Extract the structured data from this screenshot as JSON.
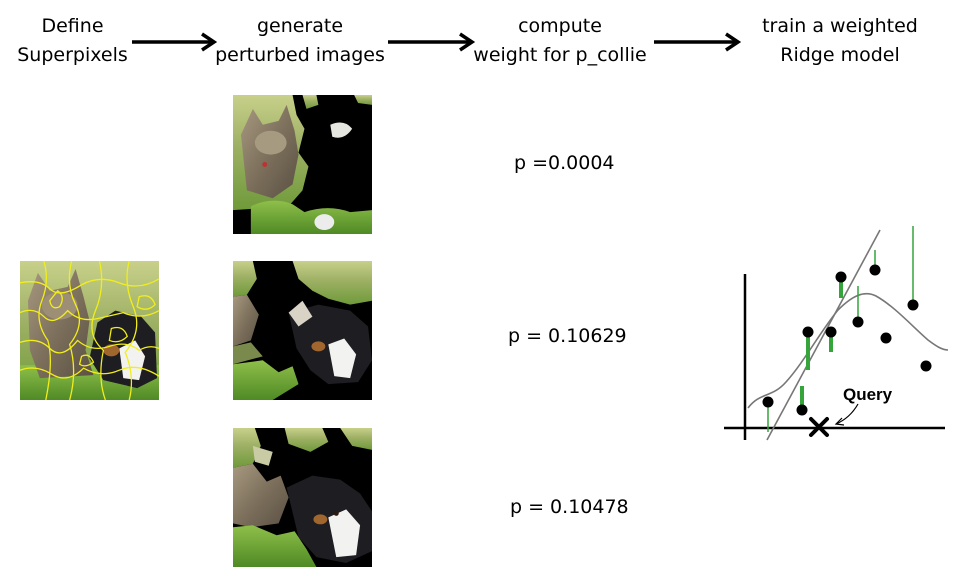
{
  "steps": [
    {
      "line1": "Define",
      "line2": "Superpixels"
    },
    {
      "line1": "generate",
      "line2": "perturbed images"
    },
    {
      "line1": "compute",
      "line2": "weight for  p_collie"
    },
    {
      "line1": "train a weighted",
      "line2": "Ridge model"
    }
  ],
  "probabilities": [
    "p =0.0004",
    "p = 0.10629",
    "p = 0.10478"
  ],
  "graph": {
    "query_label": "Query"
  },
  "colors": {
    "superpixel_border": "#f2ee1a",
    "residual": "#35a43a",
    "curve": "#777777",
    "mask": "#000000"
  }
}
